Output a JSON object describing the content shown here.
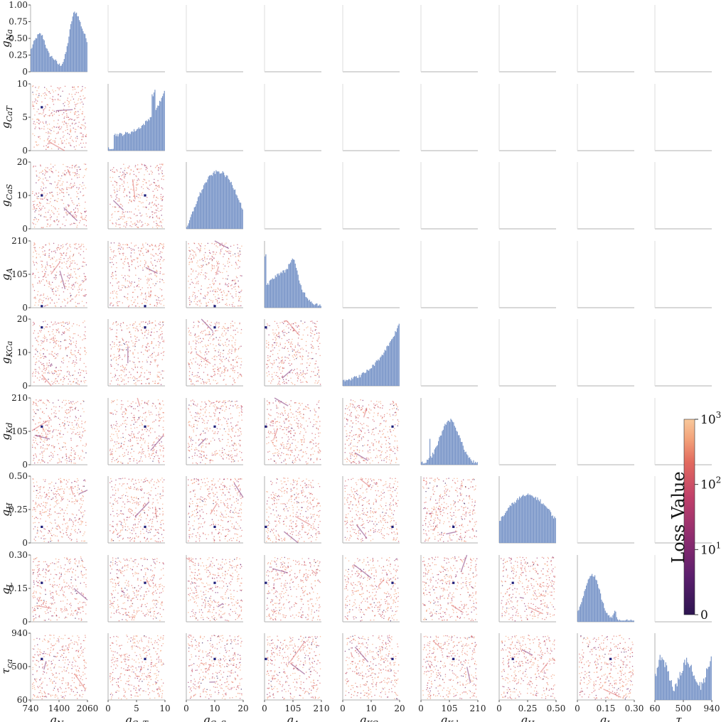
{
  "chart_data": {
    "type": "scatter",
    "layout_kind": "pairplot-lower-triangle",
    "parameters": [
      {
        "key": "gNa",
        "base": "g",
        "sub": "Na",
        "ticks": [
          "740",
          "1400",
          "2060"
        ],
        "range": [
          740,
          2060
        ]
      },
      {
        "key": "gCaT",
        "base": "g",
        "sub": "CaT",
        "ticks": [
          "0",
          "5",
          "10"
        ],
        "range": [
          0,
          10
        ]
      },
      {
        "key": "gCaS",
        "base": "g",
        "sub": "CaS",
        "ticks": [
          "0",
          "10",
          "20"
        ],
        "range": [
          0,
          20
        ]
      },
      {
        "key": "gA",
        "base": "g",
        "sub": "A",
        "ticks": [
          "0",
          "105",
          "210"
        ],
        "range": [
          0,
          210
        ]
      },
      {
        "key": "gKCa",
        "base": "g",
        "sub": "KCa",
        "ticks": [
          "0",
          "10",
          "20"
        ],
        "range": [
          0,
          20
        ]
      },
      {
        "key": "gKd",
        "base": "g",
        "sub": "Kd",
        "ticks": [
          "0",
          "105",
          "210"
        ],
        "range": [
          0,
          210
        ]
      },
      {
        "key": "gH",
        "base": "g",
        "sub": "H",
        "ticks": [
          "0",
          "0.25",
          "0.50"
        ],
        "range": [
          0,
          0.5
        ]
      },
      {
        "key": "gL",
        "base": "g",
        "sub": "L",
        "ticks": [
          "0",
          "0.15",
          "0.30"
        ],
        "range": [
          0,
          0.3
        ]
      },
      {
        "key": "tca",
        "base": "τ",
        "sub": "ca",
        "ticks": [
          "60",
          "500",
          "940"
        ],
        "range": [
          60,
          940
        ]
      }
    ],
    "diag_hist_ylim": [
      0,
      1.0
    ],
    "diag_hist_ticks": [
      "0",
      "0.25",
      "0.50",
      "0.75",
      "1.00"
    ],
    "optimum": {
      "gNa": 1000,
      "gCaT": 6.5,
      "gCaS": 10,
      "gA": 5,
      "gKCa": 17.5,
      "gKd": 120,
      "gH": 0.12,
      "gL": 0.175,
      "tca": 600
    },
    "colorbar": {
      "title": "Loss Value",
      "ticks": [
        {
          "base": "0",
          "exp": ""
        },
        {
          "base": "10",
          "exp": "1"
        },
        {
          "base": "10",
          "exp": "2"
        },
        {
          "base": "10",
          "exp": "3"
        }
      ],
      "scale": "symlog",
      "colors": [
        "#2d1550",
        "#5c1f6e",
        "#8f2d6f",
        "#c0406a",
        "#e26a5e",
        "#f3a37a",
        "#f8c89b"
      ]
    },
    "marker_color": "#1d1e7a",
    "hist_color": "#7b97c9",
    "grid": false
  }
}
